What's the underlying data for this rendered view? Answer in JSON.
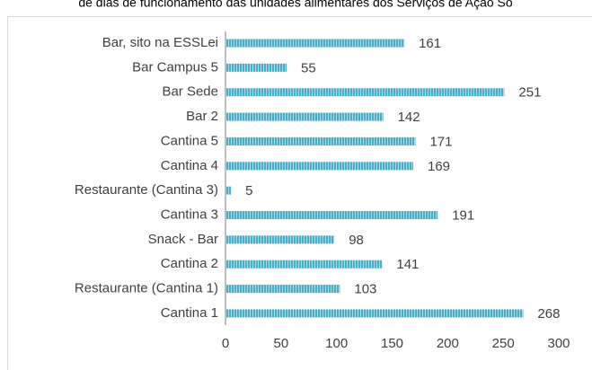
{
  "chart_data": {
    "type": "barh",
    "title": "de dias de funcionamento das unidades alimentares dos Serviços de Ação So",
    "categories": [
      "Bar, sito na ESSLei",
      "Bar Campus 5",
      "Bar Sede",
      "Bar 2",
      "Cantina 5",
      "Cantina 4",
      "Restaurante (Cantina 3)",
      "Cantina 3",
      "Snack - Bar",
      "Cantina 2",
      "Restaurante (Cantina 1)",
      "Cantina 1"
    ],
    "values": [
      161,
      55,
      251,
      142,
      171,
      169,
      5,
      191,
      98,
      141,
      103,
      268
    ],
    "color": "#4bacc6",
    "xlim": [
      0,
      300
    ],
    "xticks": [
      0,
      50,
      100,
      150,
      200,
      250,
      300
    ],
    "grid": false
  }
}
